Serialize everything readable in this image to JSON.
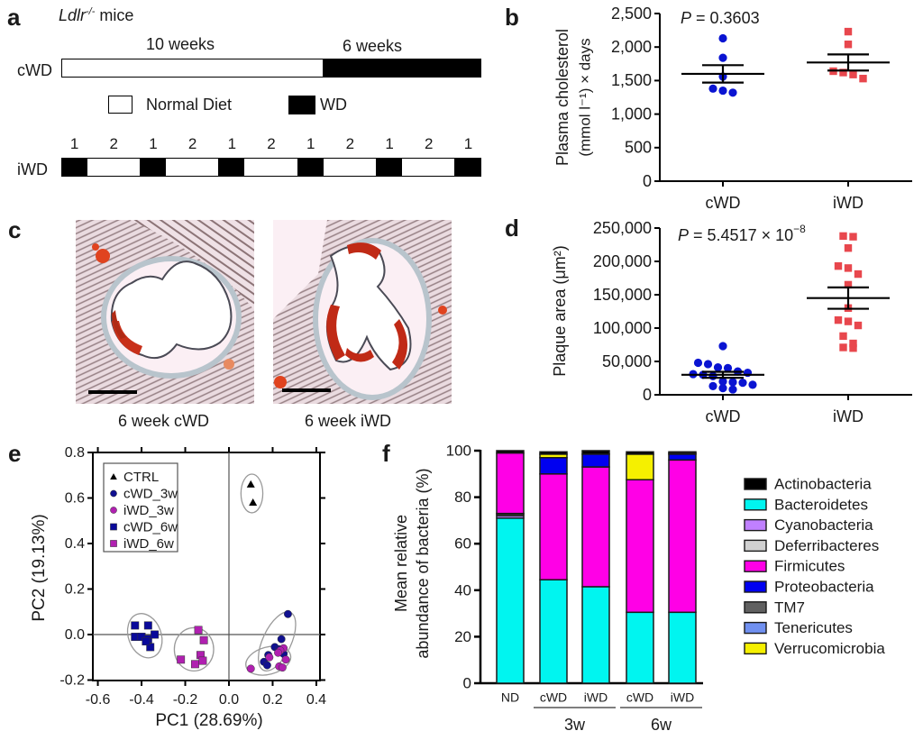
{
  "panels": {
    "a": {
      "letter": "a",
      "title_italic": "Ldlr",
      "title_super": "-/-",
      "title_rest": " mice",
      "cwd_label": "cWD",
      "iwd_label": "iWD",
      "period1_label": "10 weeks",
      "period2_label": "6 weeks",
      "legend": [
        {
          "label": "Normal Diet",
          "color": "#ffffff"
        },
        {
          "label": "WD",
          "color": "#000000"
        }
      ],
      "cwd_segments": [
        {
          "diet": "Normal Diet",
          "weeks": 10
        },
        {
          "diet": "WD",
          "weeks": 6
        }
      ],
      "iwd_segments": [
        {
          "diet": "WD",
          "weeks": 1,
          "label": "1"
        },
        {
          "diet": "Normal Diet",
          "weeks": 2,
          "label": "2"
        },
        {
          "diet": "WD",
          "weeks": 1,
          "label": "1"
        },
        {
          "diet": "Normal Diet",
          "weeks": 2,
          "label": "2"
        },
        {
          "diet": "WD",
          "weeks": 1,
          "label": "1"
        },
        {
          "diet": "Normal Diet",
          "weeks": 2,
          "label": "2"
        },
        {
          "diet": "WD",
          "weeks": 1,
          "label": "1"
        },
        {
          "diet": "Normal Diet",
          "weeks": 2,
          "label": "2"
        },
        {
          "diet": "WD",
          "weeks": 1,
          "label": "1"
        },
        {
          "diet": "Normal Diet",
          "weeks": 2,
          "label": "2"
        },
        {
          "diet": "WD",
          "weeks": 1,
          "label": "1"
        }
      ]
    },
    "c": {
      "letter": "c",
      "images": [
        {
          "caption": "6 week cWD",
          "description": "aortic root section, oil red O stain, cWD"
        },
        {
          "caption": "6 week iWD",
          "description": "aortic root section, oil red O stain, iWD"
        }
      ]
    },
    "b": {
      "letter": "b"
    },
    "d": {
      "letter": "d"
    },
    "e": {
      "letter": "e"
    },
    "f": {
      "letter": "f"
    }
  },
  "chart_data": [
    {
      "id": "b",
      "type": "scatter",
      "title": "",
      "annotation": "P = 0.3603",
      "annotation_p": "P",
      "annotation_rest": " = 0.3603",
      "xlabel": "",
      "ylabel_line1": "Plasma cholesterol",
      "ylabel_line2": "(mmol l⁻¹) × days",
      "ylim": [
        0,
        2500
      ],
      "yticks": [
        0,
        500,
        1000,
        1500,
        2000,
        2500
      ],
      "ytick_labels": [
        "0",
        "500",
        "1,000",
        "1,500",
        "2,000",
        "2,500"
      ],
      "categories": [
        "cWD",
        "iWD"
      ],
      "series": [
        {
          "name": "cWD",
          "marker": "circle",
          "color": "#0a14d2",
          "values": [
            2130,
            1840,
            1560,
            1380,
            1320,
            1350
          ],
          "mean": 1600,
          "sem": 130
        },
        {
          "name": "iWD",
          "marker": "square",
          "color": "#e8474d",
          "values": [
            2230,
            2040,
            1620,
            1530,
            1590,
            1640
          ],
          "mean": 1770,
          "sem": 120
        }
      ]
    },
    {
      "id": "d",
      "type": "scatter",
      "title": "",
      "annotation_p": "P",
      "annotation_rest": " = 5.4517 × 10",
      "annotation_exp": "−8",
      "xlabel": "",
      "ylabel": "Plaque area (μm²)",
      "ylim": [
        0,
        250000
      ],
      "yticks": [
        0,
        50000,
        100000,
        150000,
        200000,
        250000
      ],
      "ytick_labels": [
        "0",
        "50,000",
        "100,000",
        "150,000",
        "200,000",
        "250,000"
      ],
      "categories": [
        "cWD",
        "iWD"
      ],
      "series": [
        {
          "name": "cWD",
          "marker": "circle",
          "color": "#0a14d2",
          "values": [
            73000,
            46000,
            48000,
            40000,
            41000,
            35000,
            33000,
            30000,
            28000,
            31000,
            20000,
            18000,
            19000,
            13000,
            15000,
            8000,
            10000
          ],
          "mean": 30000,
          "sem": 4500
        },
        {
          "name": "iWD",
          "marker": "square",
          "color": "#e8474d",
          "values": [
            238000,
            237000,
            220000,
            193000,
            190000,
            181000,
            165000,
            130000,
            112000,
            110000,
            104000,
            88000,
            77000,
            70000,
            71000
          ],
          "mean": 145000,
          "sem": 16000
        }
      ]
    },
    {
      "id": "e",
      "type": "scatter",
      "title": "",
      "xlabel": "PC1 (28.69%)",
      "ylabel": "PC2 (19.13%)",
      "xlim": [
        -0.65,
        0.42
      ],
      "ylim": [
        -0.2,
        0.8
      ],
      "xticks": [
        -0.6,
        -0.4,
        -0.2,
        0.0,
        0.2,
        0.4
      ],
      "xtick_labels": [
        "-0.6",
        "-0.4",
        "-0.2",
        "0.0",
        "0.2",
        "0.4"
      ],
      "yticks": [
        -0.2,
        0.0,
        0.2,
        0.4,
        0.6,
        0.8
      ],
      "ytick_labels": [
        "-0.2",
        "0.0",
        "0.2",
        "0.4",
        "0.6",
        "0.8"
      ],
      "legend_position": "top-left",
      "series": [
        {
          "name": "CTRL",
          "marker": "triangle",
          "color": "#000000",
          "points": [
            [
              0.1,
              0.66
            ],
            [
              0.11,
              0.58
            ]
          ]
        },
        {
          "name": "cWD_3w",
          "marker": "circle",
          "color": "#101090",
          "points": [
            [
              0.27,
              0.09
            ],
            [
              0.24,
              -0.02
            ],
            [
              0.21,
              -0.055
            ],
            [
              0.18,
              -0.09
            ],
            [
              0.16,
              -0.12
            ],
            [
              0.175,
              -0.135
            ],
            [
              0.25,
              -0.085
            ],
            [
              0.23,
              -0.065
            ]
          ]
        },
        {
          "name": "iWD_3w",
          "marker": "circle",
          "color": "#b020b0",
          "points": [
            [
              0.1,
              -0.15
            ],
            [
              0.23,
              -0.14
            ],
            [
              0.245,
              -0.145
            ],
            [
              0.26,
              -0.11
            ],
            [
              0.25,
              -0.06
            ],
            [
              0.235,
              -0.07
            ],
            [
              0.225,
              -0.08
            ],
            [
              0.185,
              -0.1
            ]
          ]
        },
        {
          "name": "cWD_6w",
          "marker": "square",
          "color": "#0a0a9a",
          "points": [
            [
              -0.43,
              0.04
            ],
            [
              -0.37,
              0.04
            ],
            [
              -0.43,
              -0.01
            ],
            [
              -0.4,
              -0.01
            ],
            [
              -0.37,
              -0.02
            ],
            [
              -0.34,
              0.0
            ],
            [
              -0.36,
              -0.055
            ],
            [
              -0.38,
              -0.03
            ]
          ]
        },
        {
          "name": "iWD_6w",
          "marker": "square",
          "color": "#b020b0",
          "points": [
            [
              -0.14,
              0.02
            ],
            [
              -0.115,
              -0.025
            ],
            [
              -0.13,
              -0.09
            ],
            [
              -0.12,
              -0.115
            ],
            [
              -0.155,
              -0.13
            ],
            [
              -0.22,
              -0.11
            ]
          ]
        }
      ],
      "ellipses": [
        {
          "group": "CTRL",
          "cx": 0.105,
          "cy": 0.62,
          "rx": 0.05,
          "ry": 0.085,
          "angle": 0
        },
        {
          "group": "cWD_6w",
          "cx": -0.385,
          "cy": -0.005,
          "rx": 0.075,
          "ry": 0.1,
          "angle": -20
        },
        {
          "group": "iWD_6w",
          "cx": -0.16,
          "cy": -0.065,
          "rx": 0.09,
          "ry": 0.095,
          "angle": 0
        },
        {
          "group": "cWD_3w",
          "cx": 0.22,
          "cy": -0.03,
          "rx": 0.065,
          "ry": 0.14,
          "angle": 25
        },
        {
          "group": "iWD_3w",
          "cx": 0.18,
          "cy": -0.115,
          "rx": 0.105,
          "ry": 0.06,
          "angle": -15
        }
      ]
    },
    {
      "id": "f",
      "type": "bar",
      "stacked": true,
      "title": "",
      "xlabel": "",
      "ylabel_line1": "Mean relative",
      "ylabel_line2": "abundance of bacteria (%)",
      "ylim": [
        0,
        100
      ],
      "yticks": [
        0,
        20,
        40,
        60,
        80,
        100
      ],
      "ytick_labels": [
        "0",
        "20",
        "40",
        "60",
        "80",
        "100"
      ],
      "categories": [
        "ND",
        "cWD",
        "iWD",
        "cWD",
        "iWD"
      ],
      "groups": [
        {
          "label": "3w",
          "categories": [
            1,
            2
          ]
        },
        {
          "label": "6w",
          "categories": [
            3,
            4
          ]
        }
      ],
      "legend_position": "right",
      "series": [
        {
          "name": "Bacteroidetes",
          "color": "#00f5f0",
          "values": [
            71.0,
            44.5,
            41.5,
            30.5,
            30.5
          ]
        },
        {
          "name": "Cyanobacteria",
          "color": "#c080ff",
          "values": [
            1.0,
            0.0,
            0.0,
            0.0,
            0.0
          ]
        },
        {
          "name": "TM7",
          "color": "#606060",
          "values": [
            0.8,
            0.0,
            0.0,
            0.0,
            0.0
          ]
        },
        {
          "name": "Deferribacteres",
          "color": "#d0d0d0",
          "values": [
            0.2,
            0.0,
            0.0,
            0.0,
            0.0
          ]
        },
        {
          "name": "Firmicutes",
          "color": "#ff00e6",
          "values": [
            26.0,
            45.5,
            51.5,
            57.0,
            65.5
          ]
        },
        {
          "name": "Proteobacteria",
          "color": "#0000f0",
          "values": [
            0.0,
            7.0,
            5.5,
            0.0,
            2.5
          ]
        },
        {
          "name": "Tenericutes",
          "color": "#7090f0",
          "values": [
            0.0,
            0.0,
            0.0,
            0.0,
            0.5
          ]
        },
        {
          "name": "Verrucomicrobia",
          "color": "#f5f000",
          "values": [
            0.0,
            1.5,
            0.0,
            11.0,
            0.0
          ]
        },
        {
          "name": "Actinobacteria",
          "color": "#000000",
          "values": [
            1.0,
            1.0,
            1.5,
            1.0,
            0.5
          ]
        }
      ],
      "legend": [
        {
          "name": "Actinobacteria",
          "color": "#000000"
        },
        {
          "name": "Bacteroidetes",
          "color": "#00f5f0"
        },
        {
          "name": "Cyanobacteria",
          "color": "#c080ff"
        },
        {
          "name": "Deferribacteres",
          "color": "#d0d0d0"
        },
        {
          "name": "Firmicutes",
          "color": "#ff00e6"
        },
        {
          "name": "Proteobacteria",
          "color": "#0000f0"
        },
        {
          "name": "TM7",
          "color": "#606060"
        },
        {
          "name": "Tenericutes",
          "color": "#7090f0"
        },
        {
          "name": "Verrucomicrobia",
          "color": "#f5f000"
        }
      ]
    }
  ]
}
